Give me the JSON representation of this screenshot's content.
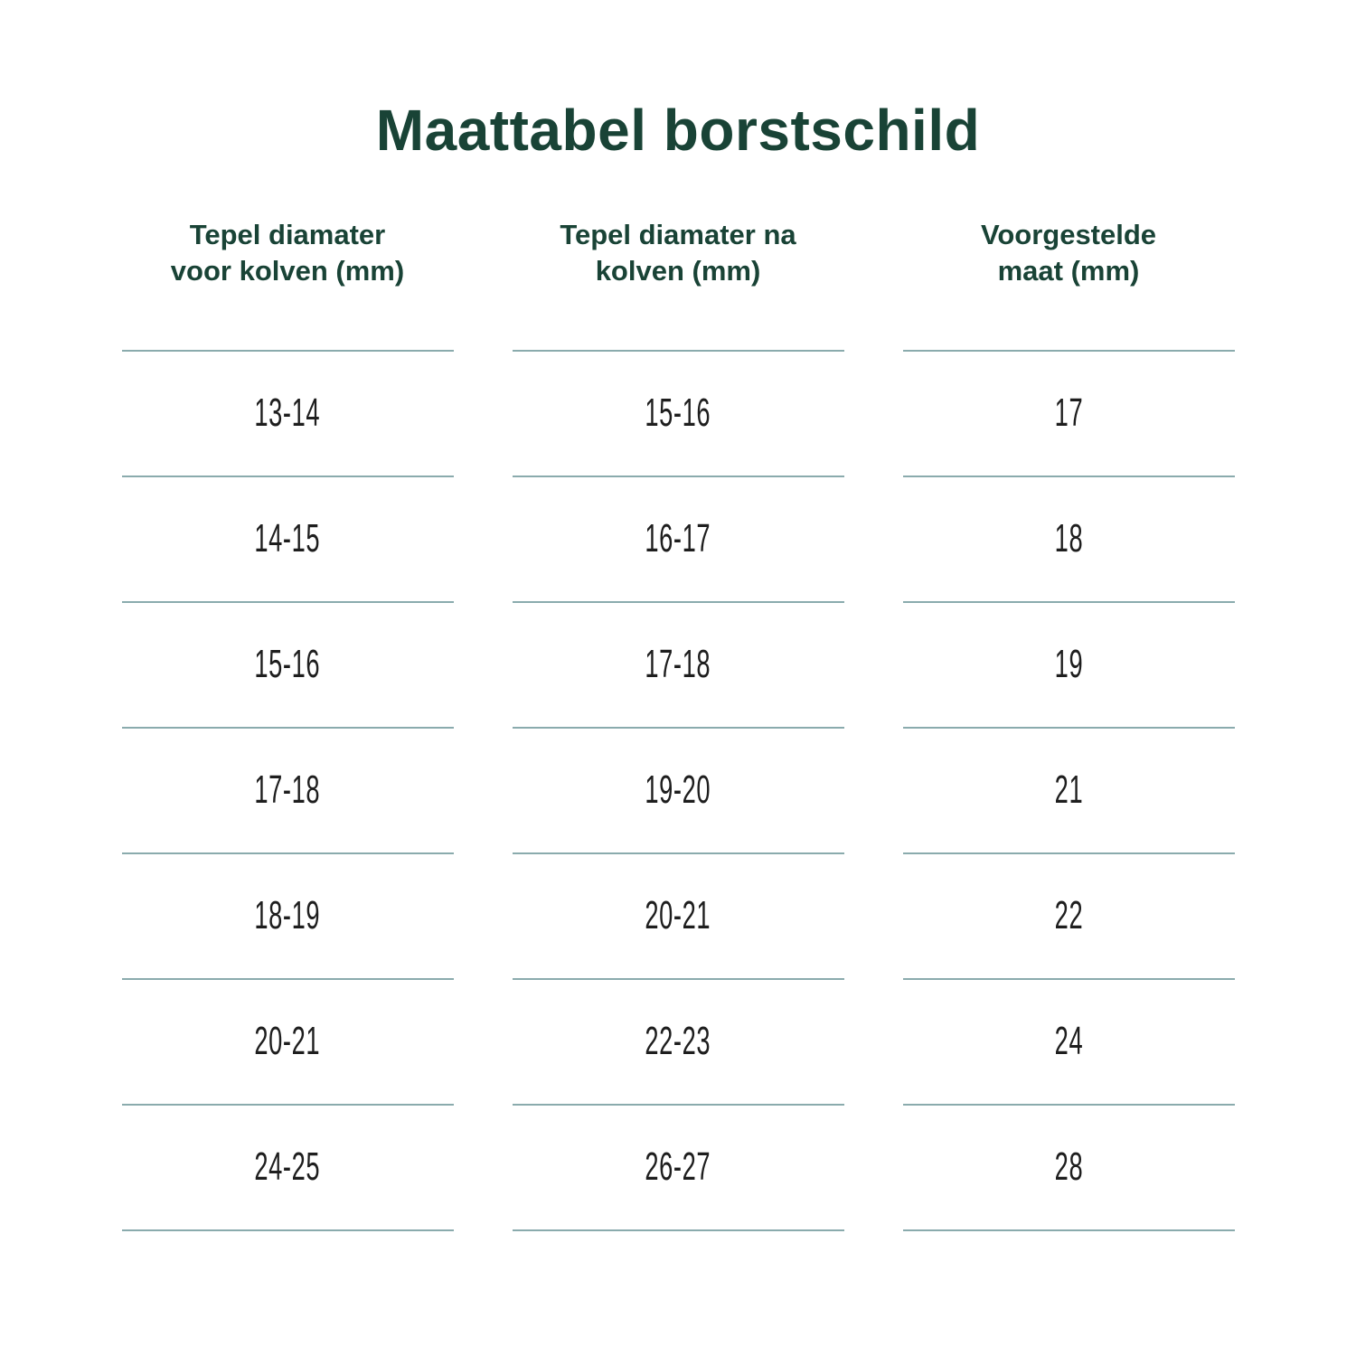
{
  "page_title": "Maattabel borstschild",
  "table": {
    "columns": [
      {
        "header": "Tepel diamater\nvoor kolven (mm)"
      },
      {
        "header": "Tepel diamater na\nkolven (mm)"
      },
      {
        "header": "Voorgestelde\nmaat (mm)"
      }
    ],
    "rows": [
      [
        "13-14",
        "15-16",
        "17"
      ],
      [
        "14-15",
        "16-17",
        "18"
      ],
      [
        "15-16",
        "17-18",
        "19"
      ],
      [
        "17-18",
        "19-20",
        "21"
      ],
      [
        "18-19",
        "20-21",
        "22"
      ],
      [
        "20-21",
        "22-23",
        "24"
      ],
      [
        "24-25",
        "26-27",
        "28"
      ]
    ]
  },
  "colors": {
    "heading_green": "#194336",
    "divider_teal": "#8aabad",
    "body_text": "#1e1e1e",
    "background": "#ffffff"
  },
  "chart_data": {
    "type": "table",
    "title": "Maattabel borstschild",
    "columns": [
      "Tepel diamater voor kolven (mm)",
      "Tepel diamater na kolven (mm)",
      "Voorgestelde maat (mm)"
    ],
    "rows": [
      [
        "13-14",
        "15-16",
        "17"
      ],
      [
        "14-15",
        "16-17",
        "18"
      ],
      [
        "15-16",
        "17-18",
        "19"
      ],
      [
        "17-18",
        "19-20",
        "21"
      ],
      [
        "18-19",
        "20-21",
        "22"
      ],
      [
        "20-21",
        "22-23",
        "24"
      ],
      [
        "24-25",
        "26-27",
        "28"
      ]
    ],
    "layout": {
      "header_color": "#194336",
      "row_divider_color": "#8aabad",
      "dividers": "horizontal per-column lines with gaps between columns",
      "alignment": "center"
    }
  }
}
